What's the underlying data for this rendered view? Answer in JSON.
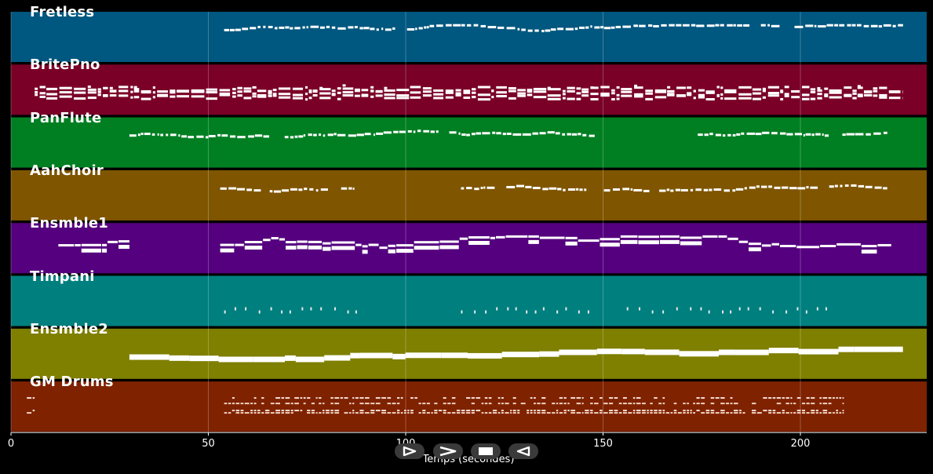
{
  "chart_data": {
    "type": "piano-roll",
    "xlabel": "Temps (secondes)",
    "xlim": [
      0,
      232
    ],
    "xticks": [
      0,
      50,
      100,
      150,
      200
    ],
    "grid": true,
    "tracks": [
      {
        "name": "Fretless",
        "color": "#00577f",
        "segments": [
          [
            54,
            226
          ]
        ],
        "density": 0.55,
        "style": "melody"
      },
      {
        "name": "BritePno",
        "color": "#7a0027",
        "segments": [
          [
            6,
            226
          ]
        ],
        "density": 1.0,
        "style": "dense"
      },
      {
        "name": "PanFlute",
        "color": "#007f22",
        "segments": [
          [
            30,
            148
          ],
          [
            174,
            222
          ]
        ],
        "density": 0.55,
        "style": "melody"
      },
      {
        "name": "AahChoir",
        "color": "#7f5500",
        "segments": [
          [
            53,
            87
          ],
          [
            114,
            222
          ]
        ],
        "density": 0.55,
        "style": "melody"
      },
      {
        "name": "Ensmble1",
        "color": "#55007f",
        "segments": [
          [
            12,
            30
          ],
          [
            53,
            223
          ]
        ],
        "density": 0.7,
        "style": "chords"
      },
      {
        "name": "Timpani",
        "color": "#007f7f",
        "segments": [
          [
            54,
            88
          ],
          [
            114,
            149
          ],
          [
            156,
            209
          ]
        ],
        "density": 0.2,
        "style": "hits"
      },
      {
        "name": "Ensmble2",
        "color": "#7f7f00",
        "segments": [
          [
            30,
            226
          ]
        ],
        "density": 0.9,
        "style": "pad"
      },
      {
        "name": "GM Drums",
        "color": "#7f2200",
        "segments": [
          [
            4,
            6
          ],
          [
            54,
            211
          ]
        ],
        "density": 0.9,
        "style": "drums"
      }
    ]
  },
  "controls": {
    "play_forward_icon": "play-right-icon",
    "fast_forward_icon": "fast-forward-icon",
    "stop_icon": "stop-icon",
    "play_back_icon": "play-left-icon"
  }
}
